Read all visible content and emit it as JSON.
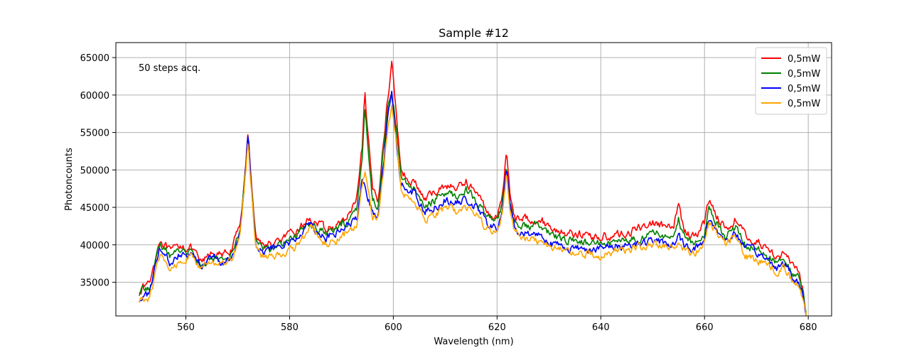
{
  "chart_data": {
    "type": "line",
    "title": "Sample #12",
    "xlabel": "Wavelength (nm)",
    "ylabel": "Photoncounts",
    "annotation": "50 steps acq.",
    "xlim": [
      546.5,
      684.5
    ],
    "ylim": [
      30500,
      67000
    ],
    "xticks": [
      560,
      580,
      600,
      620,
      640,
      660,
      680
    ],
    "yticks": [
      35000,
      40000,
      45000,
      50000,
      55000,
      60000,
      65000
    ],
    "grid": true,
    "legend_position": "top-right",
    "series": [
      {
        "name": "0,5mW",
        "color": "#ff0000",
        "x": [
          551,
          553,
          555,
          557,
          559,
          561,
          563,
          565,
          567,
          569,
          570.5,
          571.5,
          572,
          572.5,
          573.5,
          575,
          577,
          579,
          581,
          583,
          584,
          585,
          587,
          589,
          591,
          593,
          594,
          594.5,
          595,
          596,
          597,
          598,
          599,
          599.7,
          600.5,
          601.5,
          602.5,
          604,
          606,
          608,
          610,
          612,
          614,
          616,
          618,
          620,
          621,
          621.8,
          622.5,
          623.5,
          625,
          628,
          631,
          635,
          640,
          645,
          650,
          654,
          655,
          656,
          658,
          660,
          660.8,
          662,
          664,
          666,
          668,
          670,
          672,
          674,
          675.5,
          677,
          678,
          679,
          679.6
        ],
        "y": [
          34000,
          35000,
          40800,
          39000,
          40000,
          39500,
          37500,
          39000,
          38500,
          39500,
          43000,
          50000,
          55000,
          50000,
          41000,
          40000,
          40000,
          41000,
          41500,
          43000,
          43500,
          43000,
          42000,
          42500,
          43500,
          46000,
          53000,
          60000,
          55000,
          47500,
          46000,
          53000,
          60000,
          64500,
          58000,
          50000,
          49000,
          48500,
          46000,
          47000,
          48000,
          47500,
          48500,
          47000,
          44500,
          43500,
          46500,
          52500,
          47000,
          43500,
          43500,
          43500,
          42000,
          41500,
          41000,
          41500,
          43000,
          42000,
          45500,
          42000,
          41000,
          43000,
          46000,
          44500,
          42000,
          43500,
          41000,
          40500,
          39500,
          38500,
          39000,
          37000,
          36500,
          34000,
          30800
        ]
      },
      {
        "name": "0,5mW",
        "color": "#008000",
        "x": [
          551,
          553,
          555,
          557,
          559,
          561,
          563,
          565,
          567,
          569,
          570.5,
          571.5,
          572,
          572.5,
          573.5,
          575,
          577,
          579,
          581,
          583,
          584,
          585,
          587,
          589,
          591,
          593,
          594,
          594.5,
          595,
          596,
          597,
          598,
          599,
          599.7,
          600.5,
          601.5,
          602.5,
          604,
          606,
          608,
          610,
          612,
          614,
          616,
          618,
          620,
          621,
          621.8,
          622.5,
          623.5,
          625,
          628,
          631,
          635,
          640,
          645,
          650,
          654,
          655,
          656,
          658,
          660,
          660.8,
          662,
          664,
          666,
          668,
          670,
          672,
          674,
          675.5,
          677,
          678,
          679,
          679.6
        ],
        "y": [
          33500,
          34500,
          40000,
          38500,
          39500,
          39000,
          37000,
          38500,
          38000,
          39000,
          42500,
          50000,
          55000,
          49000,
          40500,
          39500,
          39500,
          40500,
          41000,
          42500,
          43000,
          42500,
          41500,
          42000,
          43000,
          45000,
          52000,
          58500,
          54000,
          46000,
          45000,
          52000,
          59000,
          60500,
          56000,
          49000,
          48000,
          47500,
          45000,
          46000,
          47000,
          46500,
          47500,
          46000,
          43500,
          43000,
          45500,
          51000,
          46000,
          42500,
          42500,
          42500,
          41000,
          40500,
          40000,
          40500,
          41500,
          41000,
          43500,
          41000,
          40000,
          41500,
          44500,
          43500,
          41000,
          42500,
          40000,
          39500,
          38500,
          37500,
          38000,
          36000,
          35500,
          33500,
          30800
        ]
      },
      {
        "name": "0,5mW",
        "color": "#0000ff",
        "x": [
          551,
          553,
          555,
          557,
          559,
          561,
          563,
          565,
          567,
          569,
          570.5,
          571.5,
          572,
          572.5,
          573.5,
          575,
          577,
          579,
          581,
          583,
          584,
          585,
          587,
          589,
          591,
          593,
          594,
          594.5,
          595,
          596,
          597,
          598,
          599,
          599.7,
          600.5,
          601.5,
          602.5,
          604,
          606,
          608,
          610,
          612,
          614,
          616,
          618,
          620,
          621,
          621.8,
          622.5,
          623.5,
          625,
          628,
          631,
          635,
          640,
          645,
          650,
          654,
          655,
          656,
          658,
          660,
          660.8,
          662,
          664,
          666,
          668,
          670,
          672,
          674,
          675.5,
          677,
          678,
          679,
          679.6
        ],
        "y": [
          32800,
          33500,
          39500,
          37500,
          39000,
          39000,
          37000,
          38500,
          37500,
          38500,
          42000,
          50500,
          55500,
          49500,
          40000,
          39000,
          39500,
          40000,
          40500,
          42500,
          43000,
          42000,
          41000,
          41500,
          42500,
          43500,
          48500,
          47500,
          46500,
          44500,
          44000,
          50000,
          57500,
          61000,
          54500,
          48000,
          47500,
          47000,
          44500,
          45000,
          46000,
          45500,
          46000,
          45000,
          43000,
          42000,
          44500,
          50500,
          45000,
          42000,
          41500,
          41500,
          40000,
          39500,
          39500,
          40000,
          40500,
          40000,
          41000,
          40000,
          39500,
          40500,
          43500,
          42500,
          40500,
          41500,
          39500,
          39000,
          38000,
          37000,
          37500,
          35500,
          35000,
          33500,
          30800
        ]
      },
      {
        "name": "0,5mW",
        "color": "#ffa500",
        "x": [
          551,
          553,
          555,
          557,
          559,
          561,
          563,
          565,
          567,
          569,
          570.5,
          571.5,
          572,
          572.5,
          573.5,
          575,
          577,
          579,
          581,
          583,
          584,
          585,
          587,
          589,
          591,
          593,
          594,
          594.5,
          595,
          596,
          597,
          598,
          599,
          599.7,
          600.5,
          601.5,
          602.5,
          604,
          606,
          608,
          610,
          612,
          614,
          616,
          618,
          620,
          621,
          621.8,
          622.5,
          623.5,
          625,
          628,
          631,
          635,
          640,
          645,
          650,
          654,
          655,
          656,
          658,
          660,
          660.8,
          662,
          664,
          666,
          668,
          670,
          672,
          674,
          675.5,
          677,
          678,
          679,
          679.6
        ],
        "y": [
          32500,
          33000,
          38500,
          36500,
          38000,
          38500,
          36500,
          38000,
          37000,
          38000,
          41500,
          49500,
          54500,
          48500,
          39500,
          38500,
          38500,
          39000,
          39500,
          41500,
          42500,
          41500,
          40000,
          40500,
          41500,
          42500,
          48000,
          49500,
          47500,
          43500,
          43500,
          49000,
          56500,
          58500,
          54000,
          47500,
          46500,
          46000,
          43500,
          44000,
          45000,
          44500,
          45000,
          44000,
          42000,
          41500,
          44000,
          49500,
          44500,
          41500,
          41000,
          40500,
          39500,
          39000,
          38500,
          39500,
          40000,
          39500,
          40500,
          39500,
          39000,
          40000,
          42500,
          42000,
          40000,
          41000,
          38500,
          38000,
          37500,
          36500,
          37000,
          35000,
          34500,
          33000,
          30800
        ]
      }
    ]
  }
}
